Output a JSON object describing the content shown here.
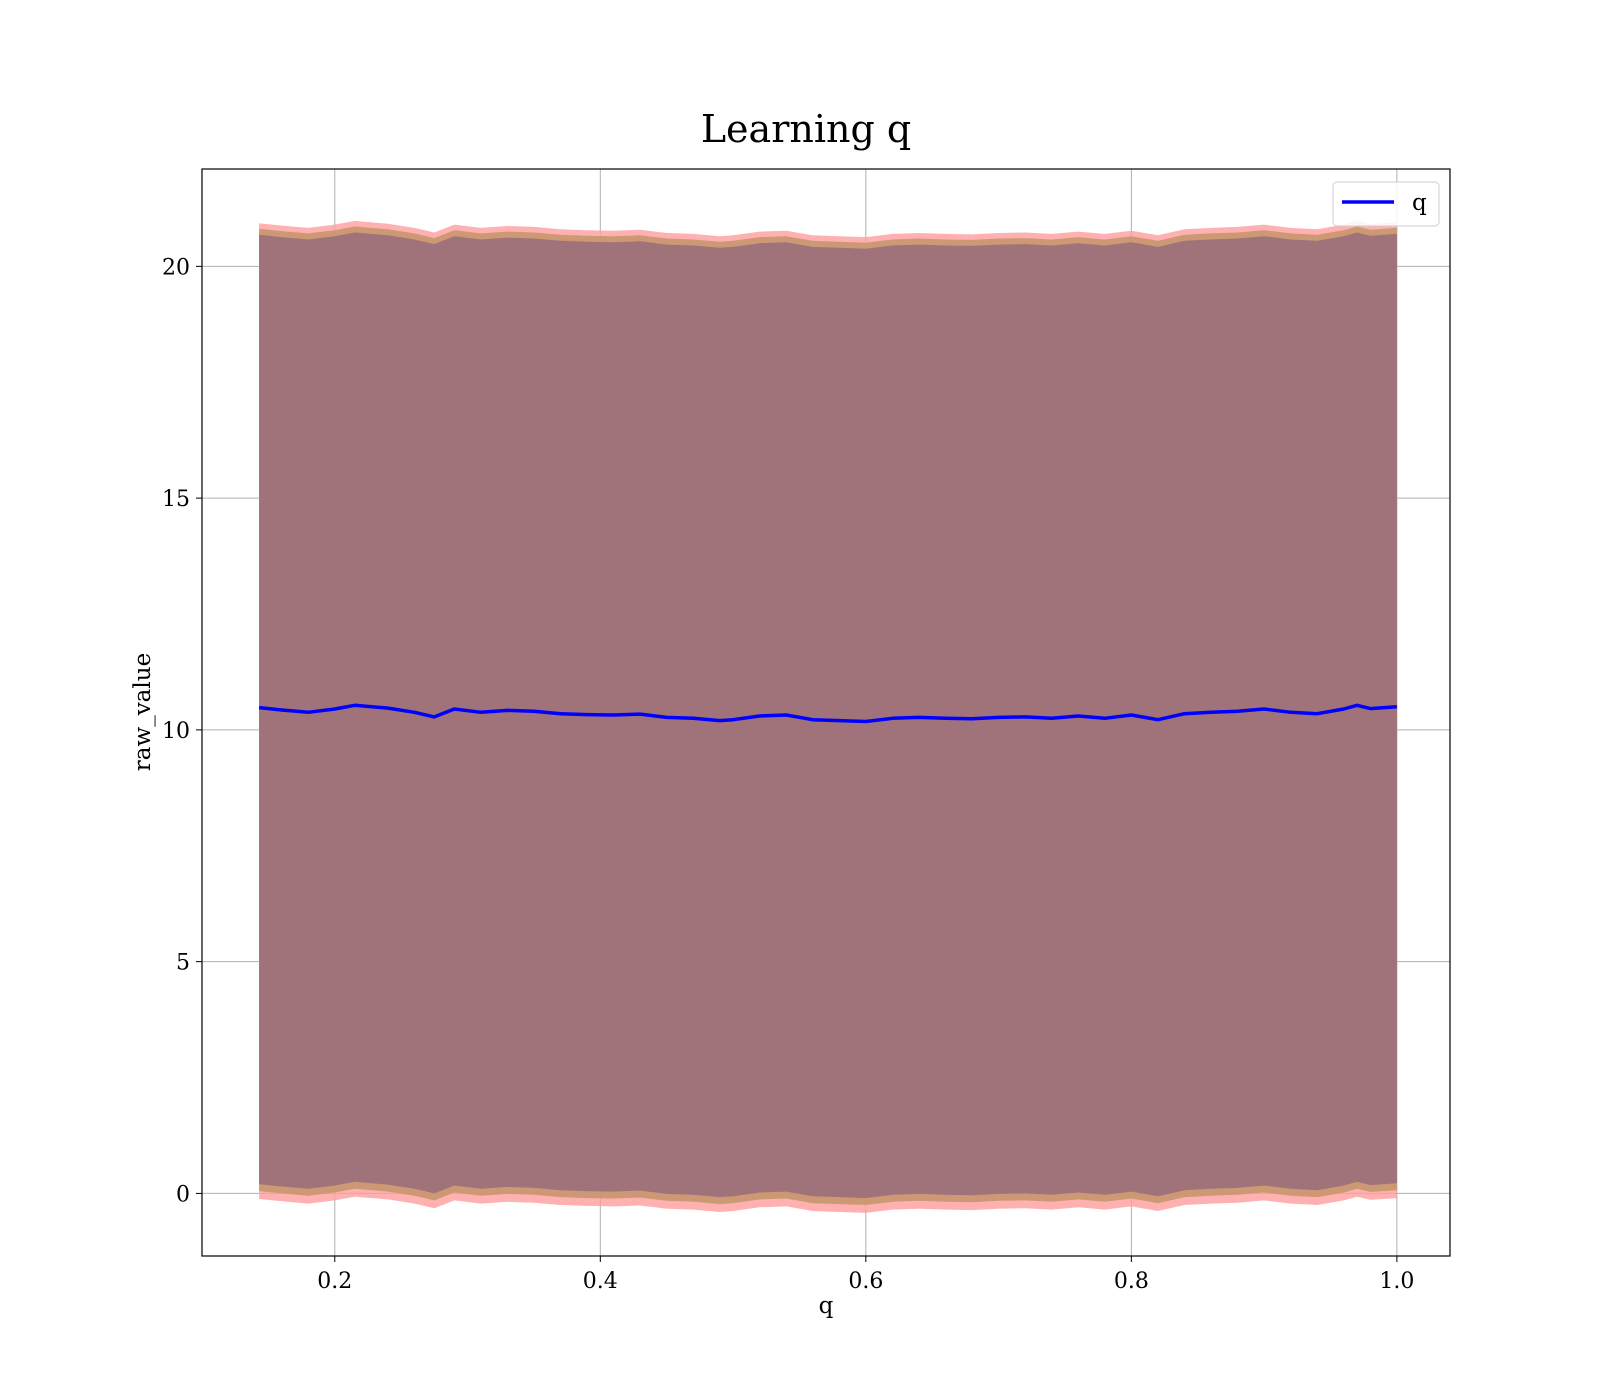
{
  "chart_data": {
    "type": "area",
    "title": "Learning q",
    "xlabel": "q",
    "ylabel": "raw_value",
    "xlim": [
      0.1,
      1.04
    ],
    "ylim": [
      -1.35,
      22.1
    ],
    "x_ticks": [
      0.2,
      0.4,
      0.6,
      0.8,
      1.0
    ],
    "x_tick_labels": [
      "0.2",
      "0.4",
      "0.6",
      "0.8",
      "1.0"
    ],
    "y_ticks": [
      0,
      5,
      10,
      15,
      20
    ],
    "y_tick_labels": [
      "0",
      "5",
      "10",
      "15",
      "20"
    ],
    "grid": true,
    "legend": {
      "position": "top-right",
      "entries": [
        "q"
      ]
    },
    "colors": {
      "line": "#0000ff",
      "outer_band": "#ff9e9e",
      "mid_band": "#c8966e",
      "inner_band": "#a0727a",
      "grid": "#b0b0b0"
    },
    "x": [
      0.143,
      0.16,
      0.18,
      0.2,
      0.215,
      0.24,
      0.26,
      0.275,
      0.29,
      0.31,
      0.33,
      0.35,
      0.37,
      0.39,
      0.41,
      0.43,
      0.45,
      0.47,
      0.49,
      0.5,
      0.52,
      0.54,
      0.56,
      0.58,
      0.6,
      0.62,
      0.64,
      0.66,
      0.68,
      0.7,
      0.72,
      0.74,
      0.76,
      0.78,
      0.8,
      0.82,
      0.84,
      0.86,
      0.88,
      0.9,
      0.92,
      0.94,
      0.96,
      0.97,
      0.98,
      1.0
    ],
    "series": [
      {
        "name": "q",
        "values": [
          10.48,
          10.43,
          10.38,
          10.45,
          10.53,
          10.47,
          10.38,
          10.28,
          10.45,
          10.38,
          10.42,
          10.4,
          10.35,
          10.33,
          10.32,
          10.34,
          10.27,
          10.25,
          10.2,
          10.22,
          10.3,
          10.32,
          10.22,
          10.2,
          10.18,
          10.25,
          10.27,
          10.25,
          10.24,
          10.27,
          10.28,
          10.25,
          10.3,
          10.25,
          10.32,
          10.22,
          10.35,
          10.38,
          10.4,
          10.45,
          10.38,
          10.35,
          10.45,
          10.53,
          10.46,
          10.5
        ]
      }
    ]
  }
}
